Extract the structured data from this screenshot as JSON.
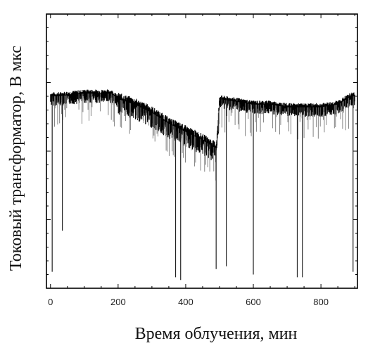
{
  "chart_data": {
    "type": "line",
    "title": "",
    "xlabel": "Время облучения, мин",
    "ylabel": "Токовый трансформатор, В мкс",
    "xlim": [
      -12,
      908
    ],
    "ylim": [
      0,
      1
    ],
    "x_ticks": [
      "0",
      "200",
      "400",
      "600",
      "800"
    ],
    "x_tick_values": [
      0,
      200,
      400,
      600,
      800
    ],
    "y_ticks": [
      "",
      "",
      ""
    ],
    "y_tick_values": [
      0.25,
      0.5,
      0.75
    ],
    "grid": false,
    "legend": "none",
    "series": [
      {
        "values_description": "dense noisy signal",
        "color": "#000000",
        "x": [
          0,
          20,
          100,
          180,
          200,
          250,
          300,
          350,
          400,
          450,
          490,
          495,
          500,
          550,
          600,
          650,
          700,
          750,
          800,
          850,
          890,
          900
        ],
        "y": [
          0.7,
          0.7,
          0.71,
          0.71,
          0.69,
          0.67,
          0.64,
          0.6,
          0.57,
          0.54,
          0.51,
          0.58,
          0.69,
          0.68,
          0.67,
          0.67,
          0.66,
          0.66,
          0.66,
          0.67,
          0.7,
          0.7
        ],
        "dips": [
          {
            "x": 5,
            "y": 0.06
          },
          {
            "x": 35,
            "y": 0.21
          },
          {
            "x": 370,
            "y": 0.04
          },
          {
            "x": 385,
            "y": 0.03
          },
          {
            "x": 490,
            "y": 0.07
          },
          {
            "x": 520,
            "y": 0.08
          },
          {
            "x": 600,
            "y": 0.05
          },
          {
            "x": 730,
            "y": 0.04
          },
          {
            "x": 745,
            "y": 0.04
          },
          {
            "x": 895,
            "y": 0.06
          }
        ]
      }
    ]
  }
}
